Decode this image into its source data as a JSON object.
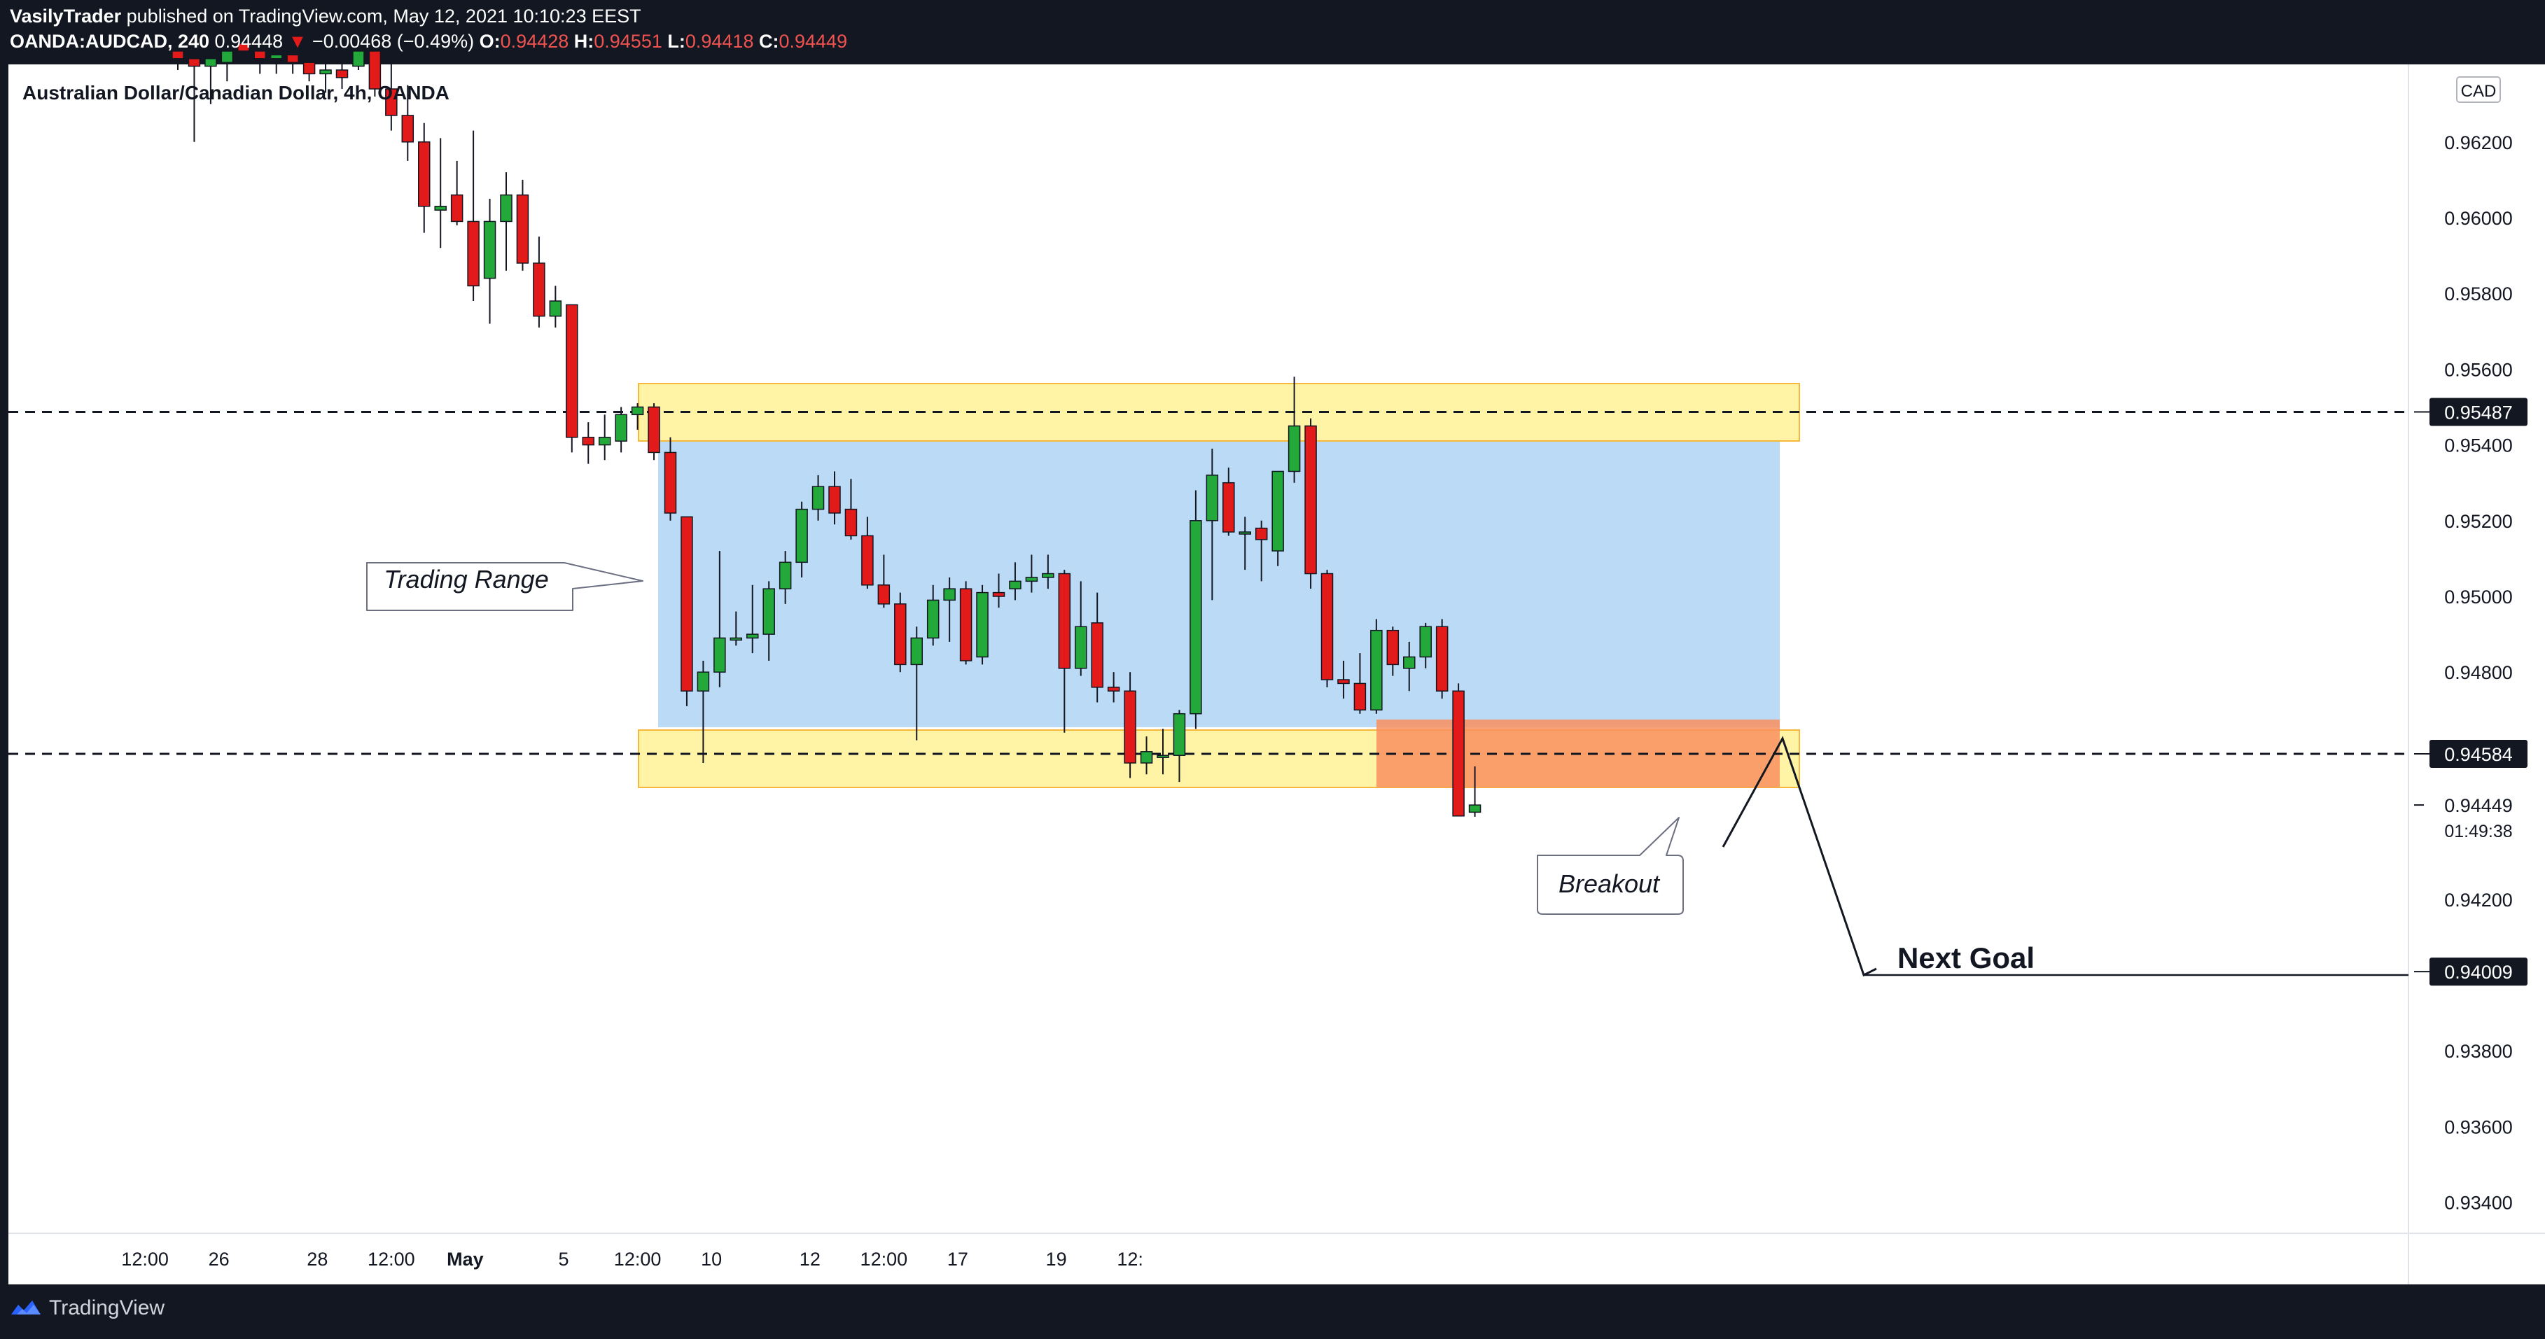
{
  "header": {
    "author": "VasilyTrader",
    "published_text": "published on TradingView.com, May 12, 2021 10:10:23 EEST",
    "symbol": "OANDA:AUDCAD, 240",
    "last": "0.94448",
    "change": "−0.00468 (−0.49%)",
    "o_label": "O:",
    "o_value": "0.94428",
    "h_label": "H:",
    "h_value": "0.94551",
    "l_label": "L:",
    "l_value": "0.94418",
    "c_label": "C:",
    "c_value": "0.94449",
    "down_arrow": "▼"
  },
  "chart_title": "Australian Dollar/Canadian Dollar, 4h, OANDA",
  "currency_label": "CAD",
  "footer": {
    "brand": "TradingView",
    "logo_icon": "tradingview-logo-icon"
  },
  "colors": {
    "up": "#22a93a",
    "down": "#e31a1a",
    "range_fill": "#bbdaf5",
    "zone_fill": "#fff3a6",
    "zone_border": "#f5b83a",
    "breakout_fill": "#f98f5e",
    "last_price_tag": "#131722"
  },
  "chart_data": {
    "type": "candlestick",
    "symbol": "AUDCAD",
    "timeframe": "4h",
    "ylim": [
      0.933,
      0.9643
    ],
    "y_ticks": [
      0.934,
      0.936,
      0.938,
      0.942,
      0.948,
      0.95,
      0.952,
      0.954,
      0.956,
      0.958,
      0.96,
      0.962
    ],
    "y_tick_labels": [
      "0.93400",
      "0.93600",
      "0.93800",
      "0.94200",
      "0.94800",
      "0.95000",
      "0.95200",
      "0.95400",
      "0.95600",
      "0.95800",
      "0.96000",
      "0.96200"
    ],
    "x_ticks": [
      {
        "label": "12:00",
        "bar": -2
      },
      {
        "label": "26",
        "bar": 2.5
      },
      {
        "label": "28",
        "bar": 8.5
      },
      {
        "label": "12:00",
        "bar": 13
      },
      {
        "label": "May",
        "bar": 17.5
      },
      {
        "label": "5",
        "bar": 23.5
      },
      {
        "label": "12:00",
        "bar": 28
      },
      {
        "label": "10",
        "bar": 32.5
      },
      {
        "label": "12",
        "bar": 38.5
      },
      {
        "label": "12:00",
        "bar": 43
      },
      {
        "label": "17",
        "bar": 47.5
      },
      {
        "label": "19",
        "bar": 53.5
      },
      {
        "label": "12:",
        "bar": 58
      }
    ],
    "candles": [
      {
        "o": 0.9644,
        "h": 0.9648,
        "l": 0.9639,
        "c": 0.9642
      },
      {
        "o": 0.9642,
        "h": 0.9647,
        "l": 0.962,
        "c": 0.964
      },
      {
        "o": 0.964,
        "h": 0.9644,
        "l": 0.963,
        "c": 0.9642
      },
      {
        "o": 0.9641,
        "h": 0.9645,
        "l": 0.9636,
        "c": 0.9644
      },
      {
        "o": 0.9646,
        "h": 0.965,
        "l": 0.9642,
        "c": 0.9644
      },
      {
        "o": 0.9644,
        "h": 0.9646,
        "l": 0.9638,
        "c": 0.9642
      },
      {
        "o": 0.9642,
        "h": 0.9645,
        "l": 0.9638,
        "c": 0.9643
      },
      {
        "o": 0.9643,
        "h": 0.9647,
        "l": 0.9638,
        "c": 0.9641
      },
      {
        "o": 0.9641,
        "h": 0.9644,
        "l": 0.9636,
        "c": 0.9638
      },
      {
        "o": 0.9638,
        "h": 0.9642,
        "l": 0.9633,
        "c": 0.9639
      },
      {
        "o": 0.9639,
        "h": 0.9643,
        "l": 0.9634,
        "c": 0.9637
      },
      {
        "o": 0.964,
        "h": 0.965,
        "l": 0.9639,
        "c": 0.9644
      },
      {
        "o": 0.9644,
        "h": 0.9648,
        "l": 0.9632,
        "c": 0.9634
      },
      {
        "o": 0.9634,
        "h": 0.9643,
        "l": 0.9623,
        "c": 0.9627
      },
      {
        "o": 0.9627,
        "h": 0.9635,
        "l": 0.9615,
        "c": 0.962
      },
      {
        "o": 0.962,
        "h": 0.9625,
        "l": 0.9596,
        "c": 0.9603
      },
      {
        "o": 0.9602,
        "h": 0.9621,
        "l": 0.9592,
        "c": 0.9603
      },
      {
        "o": 0.9606,
        "h": 0.9615,
        "l": 0.9598,
        "c": 0.9599
      },
      {
        "o": 0.9599,
        "h": 0.9623,
        "l": 0.9578,
        "c": 0.9582
      },
      {
        "o": 0.9584,
        "h": 0.9605,
        "l": 0.9572,
        "c": 0.9599
      },
      {
        "o": 0.9599,
        "h": 0.9612,
        "l": 0.9586,
        "c": 0.9606
      },
      {
        "o": 0.9606,
        "h": 0.961,
        "l": 0.9586,
        "c": 0.9588
      },
      {
        "o": 0.9588,
        "h": 0.9595,
        "l": 0.9571,
        "c": 0.9574
      },
      {
        "o": 0.9574,
        "h": 0.9582,
        "l": 0.9571,
        "c": 0.9578
      },
      {
        "o": 0.9577,
        "h": 0.9577,
        "l": 0.9538,
        "c": 0.9542
      },
      {
        "o": 0.9542,
        "h": 0.9546,
        "l": 0.9535,
        "c": 0.954
      },
      {
        "o": 0.954,
        "h": 0.9548,
        "l": 0.9536,
        "c": 0.9542
      },
      {
        "o": 0.9541,
        "h": 0.955,
        "l": 0.9538,
        "c": 0.9548
      },
      {
        "o": 0.9548,
        "h": 0.9551,
        "l": 0.9544,
        "c": 0.955
      },
      {
        "o": 0.955,
        "h": 0.9551,
        "l": 0.9536,
        "c": 0.9538
      },
      {
        "o": 0.9538,
        "h": 0.9542,
        "l": 0.952,
        "c": 0.9522
      },
      {
        "o": 0.9521,
        "h": 0.9521,
        "l": 0.9471,
        "c": 0.9475
      },
      {
        "o": 0.9475,
        "h": 0.9483,
        "l": 0.9456,
        "c": 0.948
      },
      {
        "o": 0.948,
        "h": 0.9512,
        "l": 0.9476,
        "c": 0.9489
      },
      {
        "o": 0.9489,
        "h": 0.9496,
        "l": 0.9487,
        "c": 0.9489
      },
      {
        "o": 0.9489,
        "h": 0.9503,
        "l": 0.9485,
        "c": 0.949
      },
      {
        "o": 0.949,
        "h": 0.9504,
        "l": 0.9483,
        "c": 0.9502
      },
      {
        "o": 0.9502,
        "h": 0.9512,
        "l": 0.9498,
        "c": 0.9509
      },
      {
        "o": 0.9509,
        "h": 0.9525,
        "l": 0.9505,
        "c": 0.9523
      },
      {
        "o": 0.9523,
        "h": 0.9532,
        "l": 0.952,
        "c": 0.9529
      },
      {
        "o": 0.9529,
        "h": 0.9533,
        "l": 0.9519,
        "c": 0.9522
      },
      {
        "o": 0.9523,
        "h": 0.9531,
        "l": 0.9515,
        "c": 0.9516
      },
      {
        "o": 0.9516,
        "h": 0.9521,
        "l": 0.9502,
        "c": 0.9503
      },
      {
        "o": 0.9503,
        "h": 0.9511,
        "l": 0.9497,
        "c": 0.9498
      },
      {
        "o": 0.9498,
        "h": 0.9501,
        "l": 0.948,
        "c": 0.9482
      },
      {
        "o": 0.9482,
        "h": 0.9492,
        "l": 0.9462,
        "c": 0.9489
      },
      {
        "o": 0.9489,
        "h": 0.9503,
        "l": 0.9487,
        "c": 0.9499
      },
      {
        "o": 0.9499,
        "h": 0.9505,
        "l": 0.9488,
        "c": 0.9502
      },
      {
        "o": 0.9502,
        "h": 0.9504,
        "l": 0.9482,
        "c": 0.9483
      },
      {
        "o": 0.9484,
        "h": 0.9503,
        "l": 0.9482,
        "c": 0.9501
      },
      {
        "o": 0.9501,
        "h": 0.9506,
        "l": 0.9497,
        "c": 0.95
      },
      {
        "o": 0.9502,
        "h": 0.9509,
        "l": 0.9499,
        "c": 0.9504
      },
      {
        "o": 0.9504,
        "h": 0.9511,
        "l": 0.9501,
        "c": 0.9505
      },
      {
        "o": 0.9505,
        "h": 0.9511,
        "l": 0.9502,
        "c": 0.9506
      },
      {
        "o": 0.9506,
        "h": 0.9507,
        "l": 0.9464,
        "c": 0.9481
      },
      {
        "o": 0.9481,
        "h": 0.9504,
        "l": 0.9479,
        "c": 0.9492
      },
      {
        "o": 0.9493,
        "h": 0.9501,
        "l": 0.9472,
        "c": 0.9476
      },
      {
        "o": 0.9476,
        "h": 0.948,
        "l": 0.9472,
        "c": 0.9475
      },
      {
        "o": 0.9475,
        "h": 0.948,
        "l": 0.9452,
        "c": 0.9456
      },
      {
        "o": 0.9456,
        "h": 0.9463,
        "l": 0.9453,
        "c": 0.9459
      },
      {
        "o": 0.9458,
        "h": 0.9465,
        "l": 0.9453,
        "c": 0.9458
      },
      {
        "o": 0.9458,
        "h": 0.947,
        "l": 0.9451,
        "c": 0.9469
      },
      {
        "o": 0.9469,
        "h": 0.9528,
        "l": 0.9465,
        "c": 0.952
      },
      {
        "o": 0.952,
        "h": 0.9539,
        "l": 0.9499,
        "c": 0.9532
      },
      {
        "o": 0.953,
        "h": 0.9534,
        "l": 0.9516,
        "c": 0.9517
      },
      {
        "o": 0.9517,
        "h": 0.9521,
        "l": 0.9507,
        "c": 0.9517
      },
      {
        "o": 0.9518,
        "h": 0.952,
        "l": 0.9504,
        "c": 0.9515
      },
      {
        "o": 0.9512,
        "h": 0.9533,
        "l": 0.9508,
        "c": 0.9533
      },
      {
        "o": 0.9533,
        "h": 0.9558,
        "l": 0.953,
        "c": 0.9545
      },
      {
        "o": 0.9545,
        "h": 0.9547,
        "l": 0.9502,
        "c": 0.9506
      },
      {
        "o": 0.9506,
        "h": 0.9507,
        "l": 0.9476,
        "c": 0.9478
      },
      {
        "o": 0.9478,
        "h": 0.9483,
        "l": 0.9473,
        "c": 0.9477
      },
      {
        "o": 0.9477,
        "h": 0.9485,
        "l": 0.9469,
        "c": 0.947
      },
      {
        "o": 0.947,
        "h": 0.9494,
        "l": 0.9469,
        "c": 0.9491
      },
      {
        "o": 0.9491,
        "h": 0.9492,
        "l": 0.9479,
        "c": 0.9482
      },
      {
        "o": 0.9481,
        "h": 0.9488,
        "l": 0.9475,
        "c": 0.9484
      },
      {
        "o": 0.9484,
        "h": 0.9493,
        "l": 0.9481,
        "c": 0.9492
      },
      {
        "o": 0.9492,
        "h": 0.9494,
        "l": 0.9473,
        "c": 0.9475
      },
      {
        "o": 0.9475,
        "h": 0.9477,
        "l": 0.9442,
        "c": 0.9442
      },
      {
        "o": 0.9443,
        "h": 0.94551,
        "l": 0.94418,
        "c": 0.94449
      }
    ],
    "price_tags": [
      {
        "label": "0.95487",
        "y": 0.95487
      },
      {
        "label": "0.94584",
        "y": 0.94584
      },
      {
        "label": "0.94009",
        "y": 0.94009
      }
    ],
    "last_price": {
      "label": "0.94449",
      "countdown": "01:49:38",
      "y": 0.94449
    },
    "annotations": {
      "trading_range": "Trading Range",
      "breakout": "Breakout",
      "next_goal": "Next Goal"
    }
  }
}
